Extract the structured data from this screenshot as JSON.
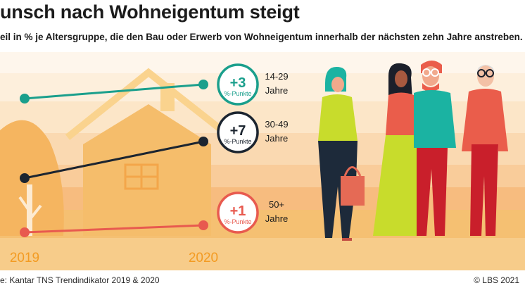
{
  "header": {
    "title": "unsch nach Wohneigentum steigt",
    "subtitle": "eil in % je Altersgruppe, die den Bau oder Erwerb von Wohneigentum innerhalb der nächsten zehn Jahre anstreben."
  },
  "footer": {
    "source": "e: Kantar TNS Trendindikator 2019 & 2020",
    "copyright": "© LBS 2021"
  },
  "colors": {
    "teal": "#1a9f8c",
    "dark": "#1c2530",
    "red": "#e85a4f",
    "orange": "#f39b22"
  },
  "chart_data": {
    "type": "line",
    "x": [
      "2019",
      "2020"
    ],
    "series": [
      {
        "name": "14-29 Jahre",
        "age_line1": "14-29",
        "age_line2": "Jahre",
        "change": "+3",
        "unit": "%-Punkte",
        "color": "#1a9f8c"
      },
      {
        "name": "30-49 Jahre",
        "age_line1": "30-49",
        "age_line2": "Jahre",
        "change": "+7",
        "unit": "%-Punkte",
        "color": "#1c2530"
      },
      {
        "name": "50+ Jahre",
        "age_line1": "50+",
        "age_line2": "Jahre",
        "change": "+1",
        "unit": "%-Punkte",
        "color": "#e85a4f"
      }
    ]
  }
}
